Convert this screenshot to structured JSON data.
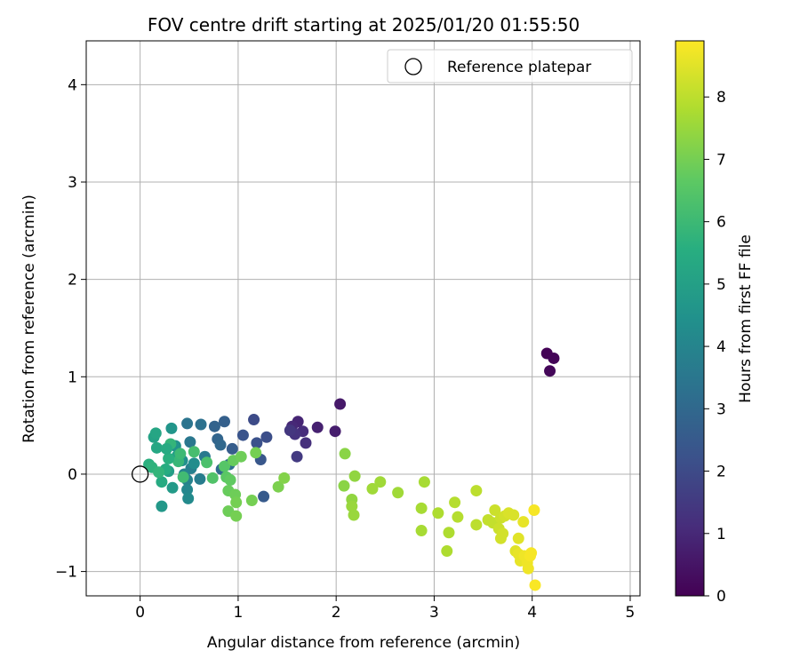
{
  "chart_data": {
    "type": "scatter",
    "title": "FOV centre drift starting at 2025/01/20 01:55:50",
    "xlabel": "Angular distance from reference (arcmin)",
    "ylabel": "Rotation from reference (arcmin)",
    "xlim": [
      -0.55,
      5.1
    ],
    "ylim": [
      -1.25,
      4.45
    ],
    "x_ticks": [
      0,
      1,
      2,
      3,
      4,
      5
    ],
    "y_ticks": [
      -1,
      0,
      1,
      2,
      3,
      4
    ],
    "x_tick_labels": [
      "0",
      "1",
      "2",
      "3",
      "4",
      "5"
    ],
    "y_tick_labels": [
      "−1",
      "0",
      "1",
      "2",
      "3",
      "4"
    ],
    "grid": true,
    "legend": {
      "position": "upper-right",
      "entries": [
        "Reference platepar"
      ]
    },
    "reference_point": {
      "x": 0,
      "y": 0,
      "label": "Reference platepar"
    },
    "colorbar": {
      "label": "Hours from first FF file",
      "colormap": "viridis",
      "range": [
        0,
        8.9
      ],
      "ticks": [
        0,
        1,
        2,
        3,
        4,
        5,
        6,
        7,
        8
      ],
      "tick_labels": [
        "0",
        "1",
        "2",
        "3",
        "4",
        "5",
        "6",
        "7",
        "8"
      ]
    },
    "points": [
      {
        "x": 4.15,
        "y": 1.24,
        "c": 0.05
      },
      {
        "x": 4.22,
        "y": 1.19,
        "c": 0.1
      },
      {
        "x": 4.18,
        "y": 1.06,
        "c": 0.15
      },
      {
        "x": 2.04,
        "y": 0.72,
        "c": 0.6
      },
      {
        "x": 1.99,
        "y": 0.44,
        "c": 0.7
      },
      {
        "x": 1.81,
        "y": 0.48,
        "c": 0.8
      },
      {
        "x": 1.61,
        "y": 0.54,
        "c": 0.9
      },
      {
        "x": 1.55,
        "y": 0.49,
        "c": 1.0
      },
      {
        "x": 1.66,
        "y": 0.44,
        "c": 1.1
      },
      {
        "x": 1.69,
        "y": 0.32,
        "c": 1.2
      },
      {
        "x": 1.58,
        "y": 0.41,
        "c": 1.3
      },
      {
        "x": 1.53,
        "y": 0.45,
        "c": 1.4
      },
      {
        "x": 1.6,
        "y": 0.18,
        "c": 1.5
      },
      {
        "x": 1.16,
        "y": 0.56,
        "c": 2.0
      },
      {
        "x": 1.29,
        "y": 0.38,
        "c": 2.1
      },
      {
        "x": 1.19,
        "y": 0.32,
        "c": 2.2
      },
      {
        "x": 1.05,
        "y": 0.4,
        "c": 2.3
      },
      {
        "x": 1.23,
        "y": 0.15,
        "c": 2.4
      },
      {
        "x": 1.26,
        "y": -0.23,
        "c": 2.5
      },
      {
        "x": 0.94,
        "y": 0.26,
        "c": 2.6
      },
      {
        "x": 0.86,
        "y": 0.54,
        "c": 2.7
      },
      {
        "x": 0.76,
        "y": 0.49,
        "c": 2.8
      },
      {
        "x": 0.79,
        "y": 0.36,
        "c": 2.9
      },
      {
        "x": 0.82,
        "y": 0.3,
        "c": 3.0
      },
      {
        "x": 0.83,
        "y": 0.05,
        "c": 3.1
      },
      {
        "x": 0.91,
        "y": 0.1,
        "c": 3.2
      },
      {
        "x": 0.62,
        "y": 0.51,
        "c": 3.3
      },
      {
        "x": 0.48,
        "y": 0.52,
        "c": 3.4
      },
      {
        "x": 0.51,
        "y": 0.33,
        "c": 3.5
      },
      {
        "x": 0.66,
        "y": 0.18,
        "c": 3.6
      },
      {
        "x": 0.61,
        "y": -0.05,
        "c": 3.7
      },
      {
        "x": 0.52,
        "y": 0.06,
        "c": 3.8
      },
      {
        "x": 0.48,
        "y": -0.06,
        "c": 3.9
      },
      {
        "x": 0.45,
        "y": 0.0,
        "c": 4.0
      },
      {
        "x": 0.48,
        "y": -0.16,
        "c": 4.1
      },
      {
        "x": 0.49,
        "y": -0.25,
        "c": 4.2
      },
      {
        "x": 0.55,
        "y": 0.11,
        "c": 4.3
      },
      {
        "x": 0.43,
        "y": 0.14,
        "c": 4.4
      },
      {
        "x": 0.36,
        "y": 0.29,
        "c": 4.5
      },
      {
        "x": 0.32,
        "y": 0.47,
        "c": 4.6
      },
      {
        "x": 0.22,
        "y": -0.33,
        "c": 4.7
      },
      {
        "x": 0.33,
        "y": -0.14,
        "c": 4.8
      },
      {
        "x": 0.29,
        "y": 0.03,
        "c": 4.9
      },
      {
        "x": 0.38,
        "y": 0.19,
        "c": 5.0
      },
      {
        "x": 0.14,
        "y": 0.38,
        "c": 5.1
      },
      {
        "x": 0.16,
        "y": 0.42,
        "c": 5.2
      },
      {
        "x": 0.17,
        "y": 0.27,
        "c": 5.3
      },
      {
        "x": 0.22,
        "y": -0.08,
        "c": 5.4
      },
      {
        "x": 0.26,
        "y": 0.05,
        "c": 5.5
      },
      {
        "x": 0.09,
        "y": 0.1,
        "c": 5.6
      },
      {
        "x": 0.12,
        "y": 0.07,
        "c": 5.7
      },
      {
        "x": 0.31,
        "y": 0.31,
        "c": 5.8
      },
      {
        "x": 0.39,
        "y": 0.13,
        "c": 5.9
      },
      {
        "x": 0.29,
        "y": 0.16,
        "c": 5.6
      },
      {
        "x": 0.27,
        "y": 0.26,
        "c": 5.4
      },
      {
        "x": 0.19,
        "y": 0.02,
        "c": 5.8
      },
      {
        "x": 0.41,
        "y": 0.21,
        "c": 6.0
      },
      {
        "x": 0.44,
        "y": -0.03,
        "c": 6.1
      },
      {
        "x": 0.55,
        "y": 0.23,
        "c": 6.2
      },
      {
        "x": 0.68,
        "y": 0.12,
        "c": 6.3
      },
      {
        "x": 0.74,
        "y": -0.04,
        "c": 6.4
      },
      {
        "x": 0.86,
        "y": 0.08,
        "c": 6.5
      },
      {
        "x": 0.88,
        "y": -0.03,
        "c": 6.6
      },
      {
        "x": 0.92,
        "y": -0.06,
        "c": 6.7
      },
      {
        "x": 0.9,
        "y": -0.17,
        "c": 6.8
      },
      {
        "x": 0.97,
        "y": -0.21,
        "c": 6.9
      },
      {
        "x": 0.98,
        "y": -0.29,
        "c": 7.0
      },
      {
        "x": 0.9,
        "y": -0.38,
        "c": 6.9
      },
      {
        "x": 0.98,
        "y": -0.43,
        "c": 7.0
      },
      {
        "x": 0.95,
        "y": 0.14,
        "c": 6.8
      },
      {
        "x": 1.03,
        "y": 0.18,
        "c": 6.9
      },
      {
        "x": 1.18,
        "y": 0.22,
        "c": 7.0
      },
      {
        "x": 1.14,
        "y": -0.27,
        "c": 7.0
      },
      {
        "x": 1.41,
        "y": -0.13,
        "c": 7.1
      },
      {
        "x": 1.47,
        "y": -0.04,
        "c": 7.2
      },
      {
        "x": 2.09,
        "y": 0.21,
        "c": 7.3
      },
      {
        "x": 2.08,
        "y": -0.12,
        "c": 7.3
      },
      {
        "x": 2.19,
        "y": -0.02,
        "c": 7.4
      },
      {
        "x": 2.16,
        "y": -0.26,
        "c": 7.4
      },
      {
        "x": 2.16,
        "y": -0.33,
        "c": 7.5
      },
      {
        "x": 2.18,
        "y": -0.42,
        "c": 7.5
      },
      {
        "x": 2.37,
        "y": -0.15,
        "c": 7.6
      },
      {
        "x": 2.45,
        "y": -0.08,
        "c": 7.6
      },
      {
        "x": 2.63,
        "y": -0.19,
        "c": 7.6
      },
      {
        "x": 2.87,
        "y": -0.35,
        "c": 7.7
      },
      {
        "x": 2.9,
        "y": -0.08,
        "c": 7.7
      },
      {
        "x": 2.87,
        "y": -0.58,
        "c": 7.7
      },
      {
        "x": 3.04,
        "y": -0.4,
        "c": 7.8
      },
      {
        "x": 3.13,
        "y": -0.79,
        "c": 7.8
      },
      {
        "x": 3.15,
        "y": -0.6,
        "c": 7.8
      },
      {
        "x": 3.21,
        "y": -0.29,
        "c": 7.9
      },
      {
        "x": 3.24,
        "y": -0.44,
        "c": 7.9
      },
      {
        "x": 3.43,
        "y": -0.17,
        "c": 8.0
      },
      {
        "x": 3.43,
        "y": -0.52,
        "c": 8.0
      },
      {
        "x": 3.55,
        "y": -0.47,
        "c": 8.1
      },
      {
        "x": 3.6,
        "y": -0.5,
        "c": 8.1
      },
      {
        "x": 3.62,
        "y": -0.37,
        "c": 8.2
      },
      {
        "x": 3.66,
        "y": -0.56,
        "c": 8.2
      },
      {
        "x": 3.68,
        "y": -0.45,
        "c": 8.2
      },
      {
        "x": 3.7,
        "y": -0.61,
        "c": 8.3
      },
      {
        "x": 3.68,
        "y": -0.66,
        "c": 8.3
      },
      {
        "x": 3.72,
        "y": -0.43,
        "c": 8.3
      },
      {
        "x": 3.76,
        "y": -0.4,
        "c": 8.4
      },
      {
        "x": 3.81,
        "y": -0.42,
        "c": 8.4
      },
      {
        "x": 3.83,
        "y": -0.79,
        "c": 8.5
      },
      {
        "x": 3.86,
        "y": -0.66,
        "c": 8.5
      },
      {
        "x": 3.86,
        "y": -0.82,
        "c": 8.6
      },
      {
        "x": 3.88,
        "y": -0.89,
        "c": 8.6
      },
      {
        "x": 3.91,
        "y": -0.49,
        "c": 8.6
      },
      {
        "x": 3.92,
        "y": -0.84,
        "c": 8.7
      },
      {
        "x": 3.95,
        "y": -0.91,
        "c": 8.7
      },
      {
        "x": 3.96,
        "y": -0.97,
        "c": 8.7
      },
      {
        "x": 3.99,
        "y": -0.81,
        "c": 8.8
      },
      {
        "x": 4.02,
        "y": -0.37,
        "c": 8.8
      },
      {
        "x": 4.03,
        "y": -1.14,
        "c": 8.85
      },
      {
        "x": 3.98,
        "y": -0.84,
        "c": 8.8
      }
    ]
  }
}
